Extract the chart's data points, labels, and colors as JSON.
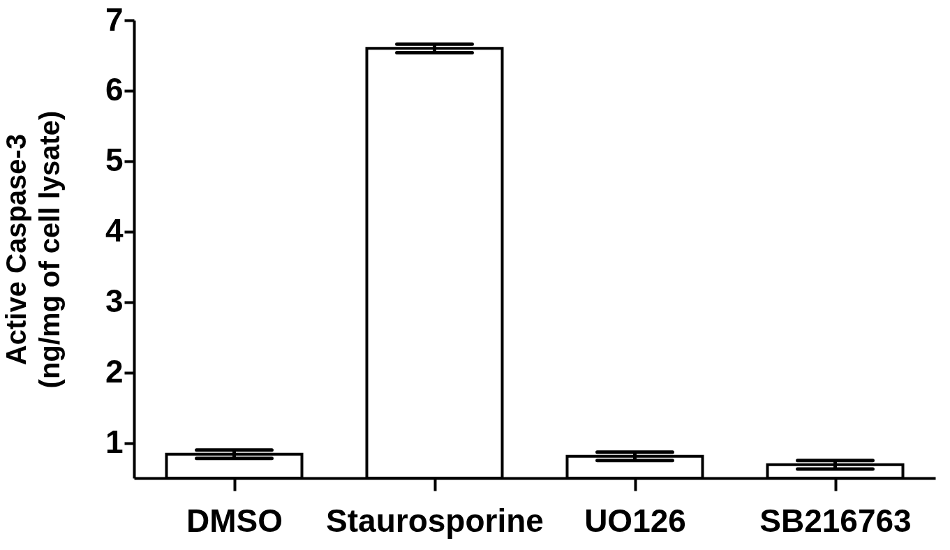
{
  "chart_data": {
    "type": "bar",
    "ylabel": "Active Caspase-3\n(ng/mg of cell lysate)",
    "categories": [
      "DMSO",
      "Staurosporine",
      "UO126",
      "SB216763"
    ],
    "values": [
      0.84,
      6.6,
      0.81,
      0.69
    ],
    "errors": [
      0.06,
      0.06,
      0.06,
      0.06
    ],
    "color": "#ffffff",
    "ylim": [
      0.5,
      7
    ],
    "yticks": [
      1,
      2,
      3,
      4,
      5,
      6,
      7
    ],
    "grid": false
  }
}
